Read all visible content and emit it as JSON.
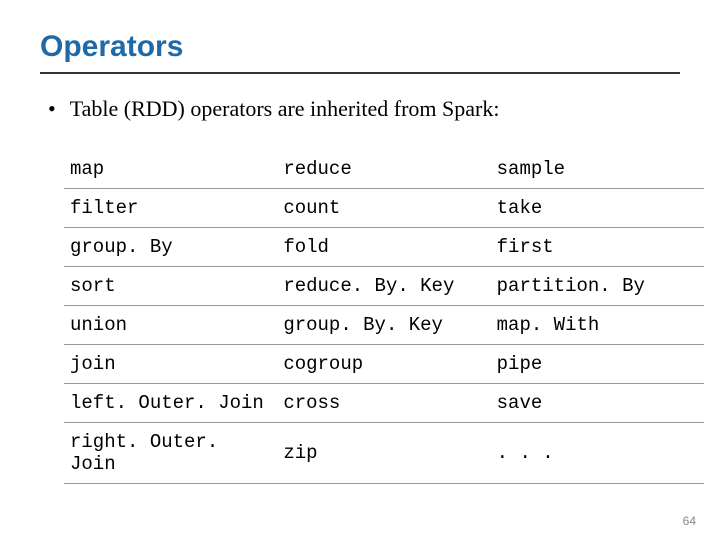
{
  "title": "Operators",
  "bullet_text": "Table (RDD) operators are inherited from Spark:",
  "operators": {
    "rows": [
      [
        "map",
        "reduce",
        "sample"
      ],
      [
        "filter",
        "count",
        "take"
      ],
      [
        "group. By",
        "fold",
        "first"
      ],
      [
        "sort",
        "reduce. By. Key",
        "partition. By"
      ],
      [
        "union",
        "group. By. Key",
        "map. With"
      ],
      [
        "join",
        "cogroup",
        "pipe"
      ],
      [
        "left. Outer. Join",
        "cross",
        "save"
      ],
      [
        "right. Outer. Join",
        "zip",
        ". . ."
      ]
    ]
  },
  "page_number": "64",
  "colors": {
    "title": "#1f6aa6",
    "text": "#000000",
    "border": "#999999",
    "underline": "#333333",
    "page_num": "#888888",
    "background": "#ffffff"
  }
}
